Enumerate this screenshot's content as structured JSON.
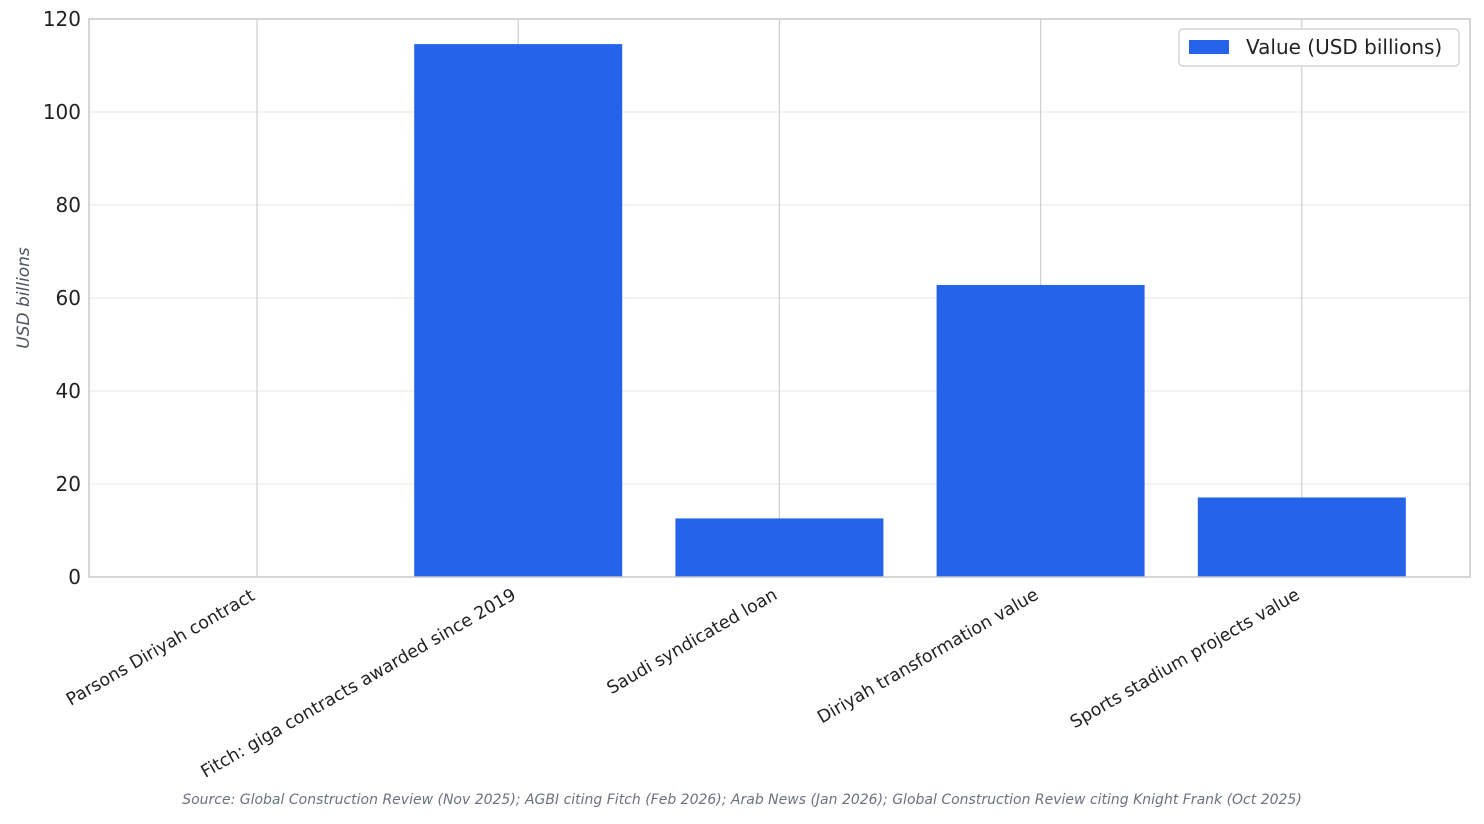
{
  "chart_data": {
    "type": "bar",
    "title": "",
    "xlabel": "",
    "ylabel": "USD billions",
    "ylim": [
      0,
      120
    ],
    "yticks": [
      0,
      20,
      40,
      60,
      80,
      100,
      120
    ],
    "categories": [
      "Parsons Diriyah contract",
      "Fitch: giga contracts awarded since 2019",
      "Saudi syndicated loan",
      "Diriyah transformation value",
      "Sports stadium projects value"
    ],
    "series": [
      {
        "name": "Value (USD billions)",
        "values": [
          0,
          114.6,
          12.6,
          62.8,
          17.1
        ],
        "color": "#2563eb"
      }
    ],
    "grid": true,
    "legend_position": "top-right"
  },
  "source_note": "Source: Global Construction Review (Nov 2025); AGBI citing Fitch (Feb 2026); Arab News (Jan 2026); Global Construction Review citing Knight Frank (Oct 2025)"
}
